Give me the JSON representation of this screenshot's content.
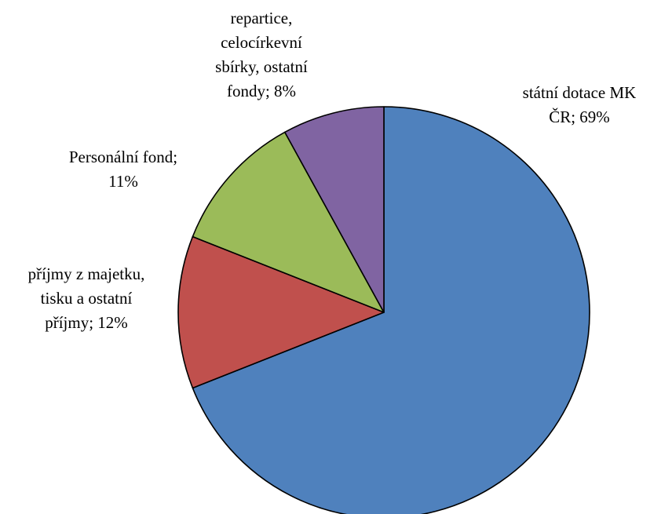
{
  "chart_data": {
    "type": "pie",
    "title": "",
    "start_angle_deg": 0,
    "direction": "clockwise",
    "legend": "none",
    "slices": [
      {
        "label": "státní dotace MK ČR; 69%",
        "label_lines": [
          "státní dotace MK",
          "ČR; 69%"
        ],
        "value": 69,
        "color": "#4F81BD"
      },
      {
        "label": "příjmy z majetku, tisku a ostatní příjmy; 12%",
        "label_lines": [
          "příjmy z majetku,",
          "tisku a ostatní",
          "příjmy; 12%"
        ],
        "value": 12,
        "color": "#C0504D"
      },
      {
        "label": "Personální fond; 11%",
        "label_lines": [
          "Personální fond;",
          "11%"
        ],
        "value": 11,
        "color": "#9BBB59"
      },
      {
        "label": "repartice, celocírkevní sbírky, ostatní fondy; 8%",
        "label_lines": [
          "repartice,",
          "celocírkevní",
          "sbírky, ostatní",
          "fondy; 8%"
        ],
        "value": 8,
        "color": "#8064A2"
      }
    ]
  }
}
